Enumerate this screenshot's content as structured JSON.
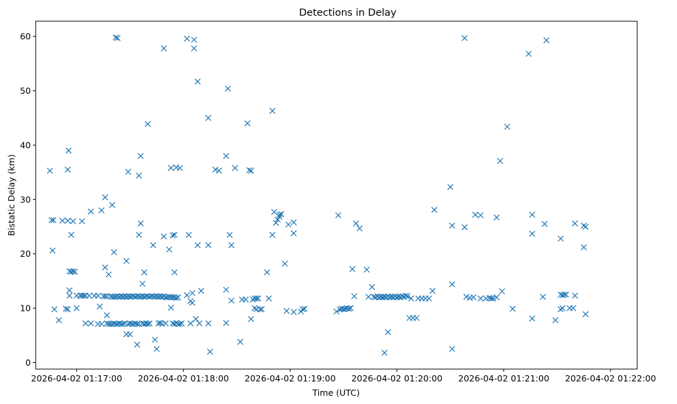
{
  "chart_data": {
    "type": "scatter",
    "title": "Detections in Delay",
    "xlabel": "Time (UTC)",
    "ylabel": "Bistatic Delay (km)",
    "marker": "x",
    "color": "#1f77b4",
    "x_unit": "seconds since 2026-04-02 01:17:00 UTC",
    "xlim": [
      -23,
      315
    ],
    "ylim": [
      -1.2,
      62.8
    ],
    "x_ticks": [
      0,
      60,
      120,
      180,
      240,
      300
    ],
    "x_tick_labels": [
      "2026-04-02 01:17:00",
      "2026-04-02 01:18:00",
      "2026-04-02 01:19:00",
      "2026-04-02 01:20:00",
      "2026-04-02 01:21:00",
      "2026-04-02 01:22:00"
    ],
    "y_ticks": [
      0,
      10,
      20,
      30,
      40,
      50,
      60
    ],
    "y_tick_labels": [
      "0",
      "10",
      "20",
      "30",
      "40",
      "50",
      "60"
    ],
    "grid": false,
    "points": [
      [
        -15,
        35.3
      ],
      [
        -14,
        26.2
      ],
      [
        -13,
        26.2
      ],
      [
        -13.5,
        20.6
      ],
      [
        -12.5,
        9.8
      ],
      [
        -10,
        7.8
      ],
      [
        -8,
        26.1
      ],
      [
        -5,
        26.1
      ],
      [
        -6,
        9.9
      ],
      [
        -5,
        9.8
      ],
      [
        -5,
        35.5
      ],
      [
        -4.5,
        39
      ],
      [
        -4,
        13.3
      ],
      [
        -4,
        12.3
      ],
      [
        -4,
        16.8
      ],
      [
        -3,
        23.5
      ],
      [
        -3,
        16.7
      ],
      [
        -2,
        16.8
      ],
      [
        -2,
        26
      ],
      [
        -1,
        16.7
      ],
      [
        0,
        12.3
      ],
      [
        0,
        10
      ],
      [
        2,
        12.3
      ],
      [
        3,
        12.3
      ],
      [
        3,
        26
      ],
      [
        4,
        12.3
      ],
      [
        5,
        12.3
      ],
      [
        5,
        7.2
      ],
      [
        7,
        12.3
      ],
      [
        8,
        27.8
      ],
      [
        8,
        7.2
      ],
      [
        10,
        12.3
      ],
      [
        12,
        12.3
      ],
      [
        12,
        7.1
      ],
      [
        13,
        10.3
      ],
      [
        14,
        7.1
      ],
      [
        14,
        28
      ],
      [
        15,
        12.2
      ],
      [
        16,
        12.2
      ],
      [
        16,
        17.5
      ],
      [
        16,
        30.4
      ],
      [
        17,
        7.2
      ],
      [
        17,
        8.7
      ],
      [
        17,
        12.2
      ],
      [
        18,
        7.1
      ],
      [
        18,
        16.2
      ],
      [
        19,
        12.2
      ],
      [
        19,
        7.1
      ],
      [
        20,
        12.1
      ],
      [
        20,
        7.1
      ],
      [
        20,
        29
      ],
      [
        21,
        20.3
      ],
      [
        21,
        12.1
      ],
      [
        21,
        7.2
      ],
      [
        22,
        12.1
      ],
      [
        22,
        59.8
      ],
      [
        22,
        7.1
      ],
      [
        23,
        12.2
      ],
      [
        23,
        7.1
      ],
      [
        23,
        59.7
      ],
      [
        24,
        12.1
      ],
      [
        24,
        7.2
      ],
      [
        25,
        12.2
      ],
      [
        25,
        7.1
      ],
      [
        26,
        12.1
      ],
      [
        26,
        7.1
      ],
      [
        27,
        12.2
      ],
      [
        27,
        7.2
      ],
      [
        28,
        12.1
      ],
      [
        28,
        18.7
      ],
      [
        28,
        5.2
      ],
      [
        29,
        12.2
      ],
      [
        29,
        35.1
      ],
      [
        29,
        7.1
      ],
      [
        30,
        12.1
      ],
      [
        30,
        7.2
      ],
      [
        30,
        5.2
      ],
      [
        31,
        12.2
      ],
      [
        31,
        7.1
      ],
      [
        32,
        12.2
      ],
      [
        32,
        7.1
      ],
      [
        33,
        12.1
      ],
      [
        33,
        7.2
      ],
      [
        34,
        12.2
      ],
      [
        34,
        7.1
      ],
      [
        34,
        3.3
      ],
      [
        35,
        12.2
      ],
      [
        35,
        34.4
      ],
      [
        35,
        23.5
      ],
      [
        35,
        7.1
      ],
      [
        36,
        12.1
      ],
      [
        36,
        38
      ],
      [
        36,
        25.6
      ],
      [
        37,
        14.5
      ],
      [
        37,
        12.2
      ],
      [
        37,
        7.2
      ],
      [
        38,
        12.1
      ],
      [
        38,
        16.6
      ],
      [
        38,
        7.1
      ],
      [
        39,
        12.2
      ],
      [
        39,
        7.2
      ],
      [
        40,
        12.2
      ],
      [
        40,
        7.1
      ],
      [
        40,
        43.9
      ],
      [
        41,
        12.1
      ],
      [
        41,
        7.2
      ],
      [
        42,
        12.2
      ],
      [
        43,
        12.2
      ],
      [
        43,
        21.6
      ],
      [
        44,
        12.1
      ],
      [
        44,
        4.2
      ],
      [
        45,
        12.2
      ],
      [
        45,
        2.5
      ],
      [
        46,
        12.1
      ],
      [
        46,
        7.2
      ],
      [
        47,
        12.2
      ],
      [
        47,
        7.3
      ],
      [
        48,
        12.1
      ],
      [
        48,
        7.1
      ],
      [
        49,
        12.2
      ],
      [
        49,
        23.2
      ],
      [
        49,
        57.8
      ],
      [
        50,
        12
      ],
      [
        50,
        7.2
      ],
      [
        51,
        12
      ],
      [
        52,
        12.1
      ],
      [
        52,
        20.8
      ],
      [
        53,
        12
      ],
      [
        53,
        10.1
      ],
      [
        53,
        35.8
      ],
      [
        54,
        12
      ],
      [
        54,
        23.4
      ],
      [
        54,
        7.2
      ],
      [
        55,
        12
      ],
      [
        55,
        23.5
      ],
      [
        55,
        16.6
      ],
      [
        55,
        7.1
      ],
      [
        56,
        11.9
      ],
      [
        56,
        35.9
      ],
      [
        56,
        7.3
      ],
      [
        57,
        12
      ],
      [
        57,
        7.1
      ],
      [
        58,
        35.8
      ],
      [
        58,
        7.1
      ],
      [
        59,
        7.2
      ],
      [
        62,
        12.4
      ],
      [
        62,
        59.6
      ],
      [
        63,
        23.5
      ],
      [
        64,
        11.3
      ],
      [
        64,
        7.2
      ],
      [
        65,
        12.8
      ],
      [
        65,
        11
      ],
      [
        66,
        57.8
      ],
      [
        66,
        59.4
      ],
      [
        67,
        8
      ],
      [
        68,
        51.7
      ],
      [
        68,
        21.6
      ],
      [
        69,
        7.2
      ],
      [
        70,
        13.2
      ],
      [
        74,
        21.6
      ],
      [
        74,
        45
      ],
      [
        74,
        7.2
      ],
      [
        75,
        2
      ],
      [
        78,
        35.5
      ],
      [
        80,
        35.3
      ],
      [
        84,
        13.4
      ],
      [
        84,
        38
      ],
      [
        84,
        7.3
      ],
      [
        85,
        50.4
      ],
      [
        86,
        23.5
      ],
      [
        87,
        21.6
      ],
      [
        87,
        11.4
      ],
      [
        89,
        35.8
      ],
      [
        92,
        3.8
      ],
      [
        93,
        11.6
      ],
      [
        95,
        11.6
      ],
      [
        96,
        44
      ],
      [
        97,
        35.4
      ],
      [
        98,
        35.3
      ],
      [
        98,
        8
      ],
      [
        99,
        11.6
      ],
      [
        100,
        10
      ],
      [
        100,
        11.8
      ],
      [
        101,
        11.8
      ],
      [
        101,
        9.8
      ],
      [
        102,
        11.8
      ],
      [
        103,
        9.8
      ],
      [
        104,
        9.8
      ],
      [
        107,
        16.6
      ],
      [
        108,
        11.8
      ],
      [
        110,
        23.5
      ],
      [
        110,
        46.3
      ],
      [
        111,
        27.7
      ],
      [
        112,
        25.7
      ],
      [
        113,
        26.3
      ],
      [
        114,
        27.2
      ],
      [
        114,
        26.8
      ],
      [
        115,
        27.3
      ],
      [
        117,
        18.2
      ],
      [
        118,
        9.5
      ],
      [
        119,
        25.4
      ],
      [
        122,
        25.8
      ],
      [
        122,
        23.8
      ],
      [
        122,
        9.3
      ],
      [
        126,
        9.4
      ],
      [
        127,
        9.8
      ],
      [
        128,
        9.9
      ],
      [
        146,
        9.4
      ],
      [
        147,
        27.1
      ],
      [
        148,
        9.8
      ],
      [
        149,
        9.9
      ],
      [
        150,
        9.8
      ],
      [
        151,
        9.9
      ],
      [
        152,
        10
      ],
      [
        153,
        9.9
      ],
      [
        154,
        10
      ],
      [
        155,
        17.2
      ],
      [
        156,
        12.2
      ],
      [
        157,
        25.6
      ],
      [
        159,
        24.7
      ],
      [
        163,
        17.1
      ],
      [
        164,
        12.1
      ],
      [
        166,
        13.9
      ],
      [
        167,
        12.1
      ],
      [
        168,
        12
      ],
      [
        169,
        12.2
      ],
      [
        170,
        12
      ],
      [
        171,
        12.1
      ],
      [
        172,
        12
      ],
      [
        173,
        12.1
      ],
      [
        173,
        1.8
      ],
      [
        174,
        12
      ],
      [
        175,
        12.2
      ],
      [
        175,
        5.6
      ],
      [
        176,
        12
      ],
      [
        177,
        12.1
      ],
      [
        178,
        12
      ],
      [
        179,
        12.2
      ],
      [
        180,
        12
      ],
      [
        181,
        12.1
      ],
      [
        182,
        12
      ],
      [
        183,
        12.2
      ],
      [
        184,
        12.1
      ],
      [
        185,
        12.3
      ],
      [
        186,
        12.2
      ],
      [
        187,
        8.2
      ],
      [
        188,
        11.8
      ],
      [
        189,
        8.2
      ],
      [
        191,
        8.2
      ],
      [
        192,
        11.8
      ],
      [
        194,
        11.8
      ],
      [
        196,
        11.8
      ],
      [
        198,
        11.8
      ],
      [
        200,
        13.2
      ],
      [
        201,
        28.1
      ],
      [
        210,
        32.3
      ],
      [
        211,
        25.2
      ],
      [
        211,
        14.4
      ],
      [
        211,
        2.5
      ],
      [
        218,
        59.7
      ],
      [
        218,
        24.9
      ],
      [
        219,
        12.1
      ],
      [
        221,
        11.9
      ],
      [
        223,
        12
      ],
      [
        224,
        27.2
      ],
      [
        227,
        11.8
      ],
      [
        227,
        27.1
      ],
      [
        230,
        11.8
      ],
      [
        232,
        11.9
      ],
      [
        233,
        11.8
      ],
      [
        234,
        11.8
      ],
      [
        236,
        12
      ],
      [
        236,
        26.7
      ],
      [
        238,
        37.1
      ],
      [
        239,
        13.1
      ],
      [
        242,
        43.4
      ],
      [
        245,
        9.9
      ],
      [
        254,
        56.8
      ],
      [
        256,
        23.7
      ],
      [
        256,
        27.2
      ],
      [
        256,
        8.1
      ],
      [
        262,
        12.1
      ],
      [
        263,
        25.5
      ],
      [
        264,
        59.3
      ],
      [
        269,
        7.8
      ],
      [
        272,
        22.8
      ],
      [
        272,
        12.5
      ],
      [
        272,
        9.8
      ],
      [
        273,
        12.4
      ],
      [
        273,
        10
      ],
      [
        274,
        12.5
      ],
      [
        275,
        12.5
      ],
      [
        277,
        10
      ],
      [
        279,
        10
      ],
      [
        280,
        12.3
      ],
      [
        280,
        25.6
      ],
      [
        285,
        25.2
      ],
      [
        285,
        21.2
      ],
      [
        286,
        25
      ],
      [
        286,
        8.9
      ]
    ]
  }
}
